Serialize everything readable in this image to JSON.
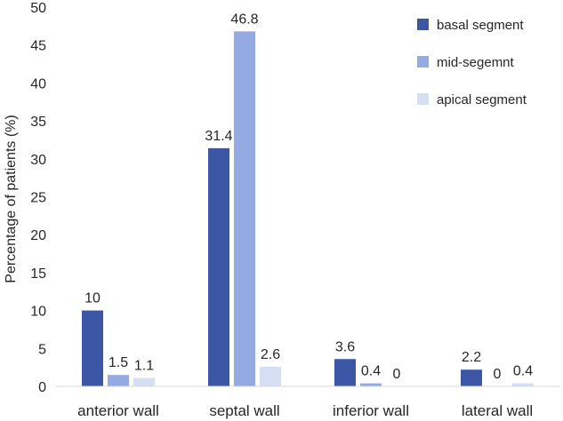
{
  "chart_data": {
    "type": "bar",
    "title": "",
    "xlabel": "",
    "ylabel": "Percentage of patients (%)",
    "ylim": [
      0,
      50
    ],
    "yticks": [
      0,
      5,
      10,
      15,
      20,
      25,
      30,
      35,
      40,
      45,
      50
    ],
    "grid": false,
    "legend_position": "top-right",
    "categories": [
      "anterior wall",
      "septal wall",
      "inferior wall",
      "lateral wall"
    ],
    "series": [
      {
        "name": "basal segment",
        "color": "#3a56a5",
        "values": [
          10,
          31.4,
          3.6,
          2.2
        ],
        "labels": [
          "10",
          "31.4",
          "3.6",
          "2.2"
        ]
      },
      {
        "name": "mid-segemnt",
        "color": "#93abe2",
        "values": [
          1.5,
          46.8,
          0.4,
          0
        ],
        "labels": [
          "1.5",
          "46.8",
          "0.4",
          "0"
        ]
      },
      {
        "name": "apical segment",
        "color": "#d5dff3",
        "values": [
          1.1,
          2.6,
          0,
          0.4
        ],
        "labels": [
          "1.1",
          "2.6",
          "0",
          "0.4"
        ]
      }
    ]
  }
}
